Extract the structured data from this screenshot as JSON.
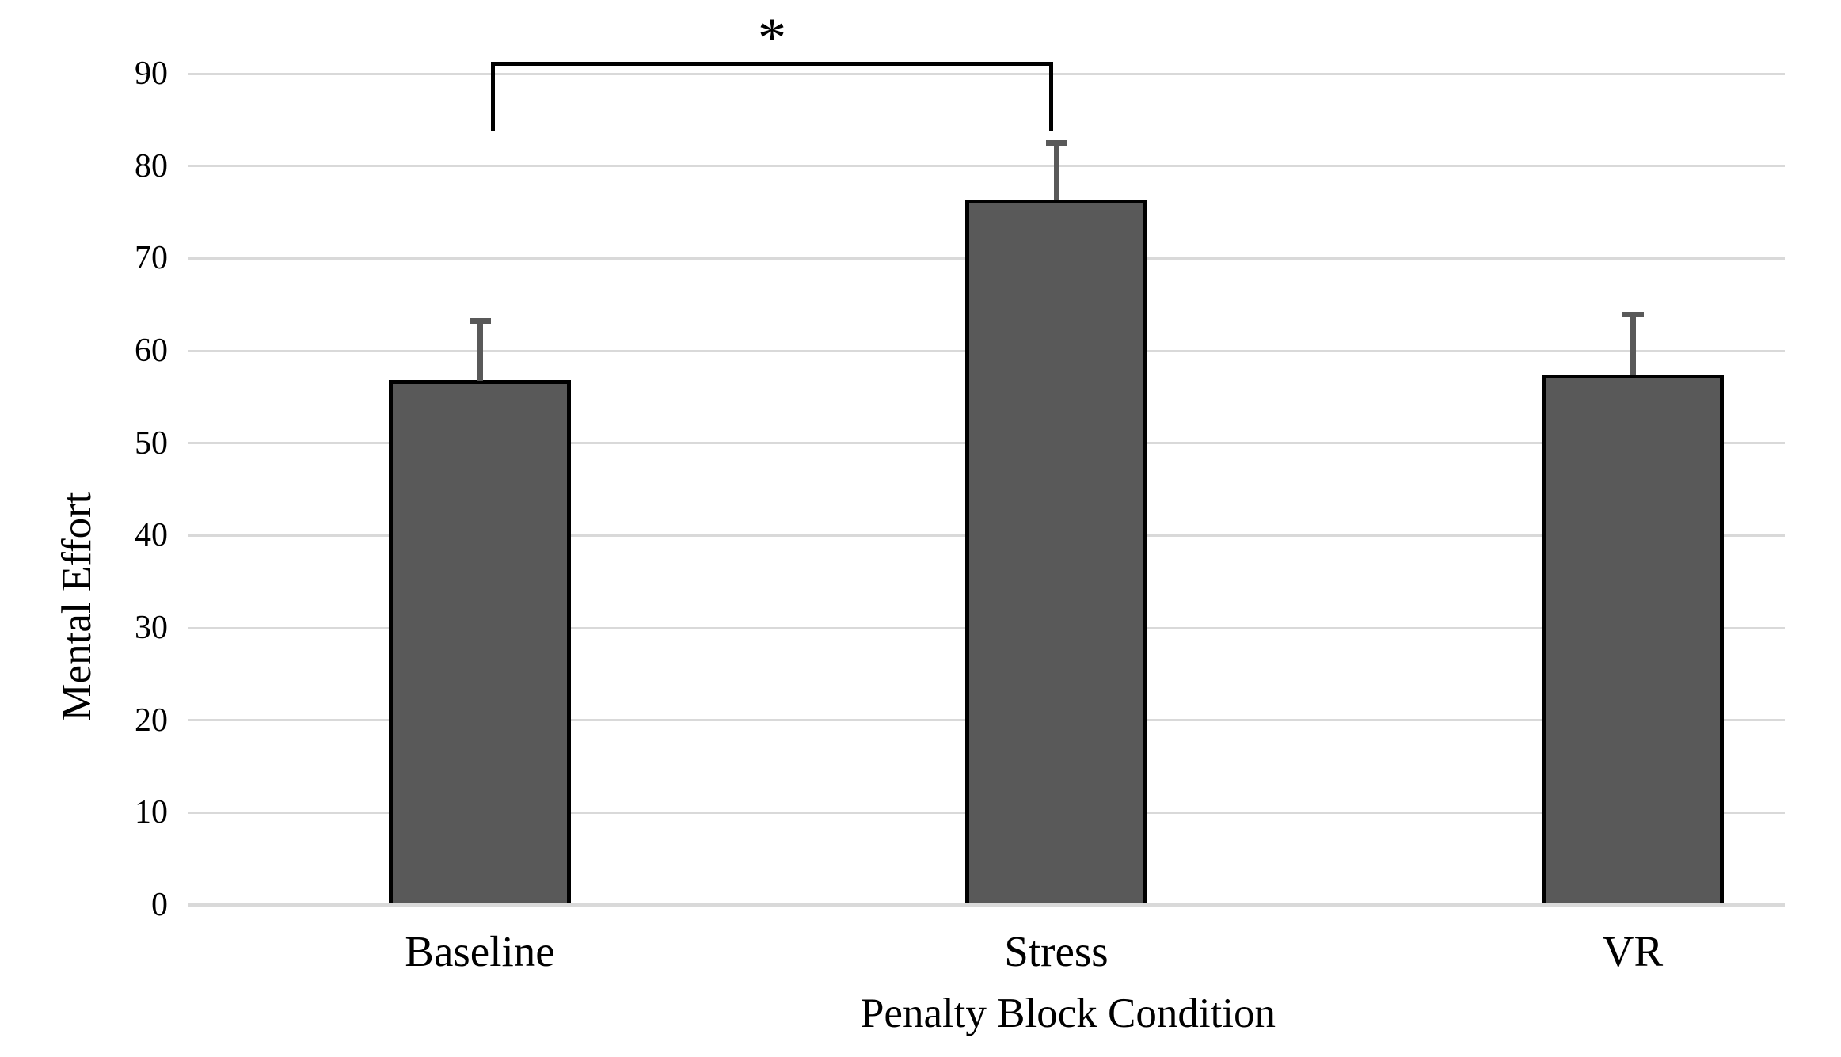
{
  "chart_data": {
    "type": "bar",
    "title": "",
    "categories": [
      "Baseline",
      "Stress",
      "VR"
    ],
    "values": [
      56.8,
      76.4,
      57.4
    ],
    "error_bars_plus": [
      6.4,
      6.1,
      6.5
    ],
    "xlabel": "Penalty Block Condition",
    "ylabel": "Mental Effort",
    "ylim": [
      0,
      90
    ],
    "yticks": [
      0,
      10,
      20,
      30,
      40,
      50,
      60,
      70,
      80,
      90
    ],
    "grid": "horizontal",
    "legend": "none",
    "annotations": {
      "significance": {
        "label": "*",
        "between": [
          "Baseline",
          "Stress"
        ]
      }
    },
    "colors": {
      "bar_fill": "#595959",
      "bar_border": "#000000",
      "gridline": "#d9d9d9",
      "axis_line": "#d9d9d9",
      "error_bar": "#595959",
      "text": "#000000",
      "background": "#ffffff"
    }
  }
}
